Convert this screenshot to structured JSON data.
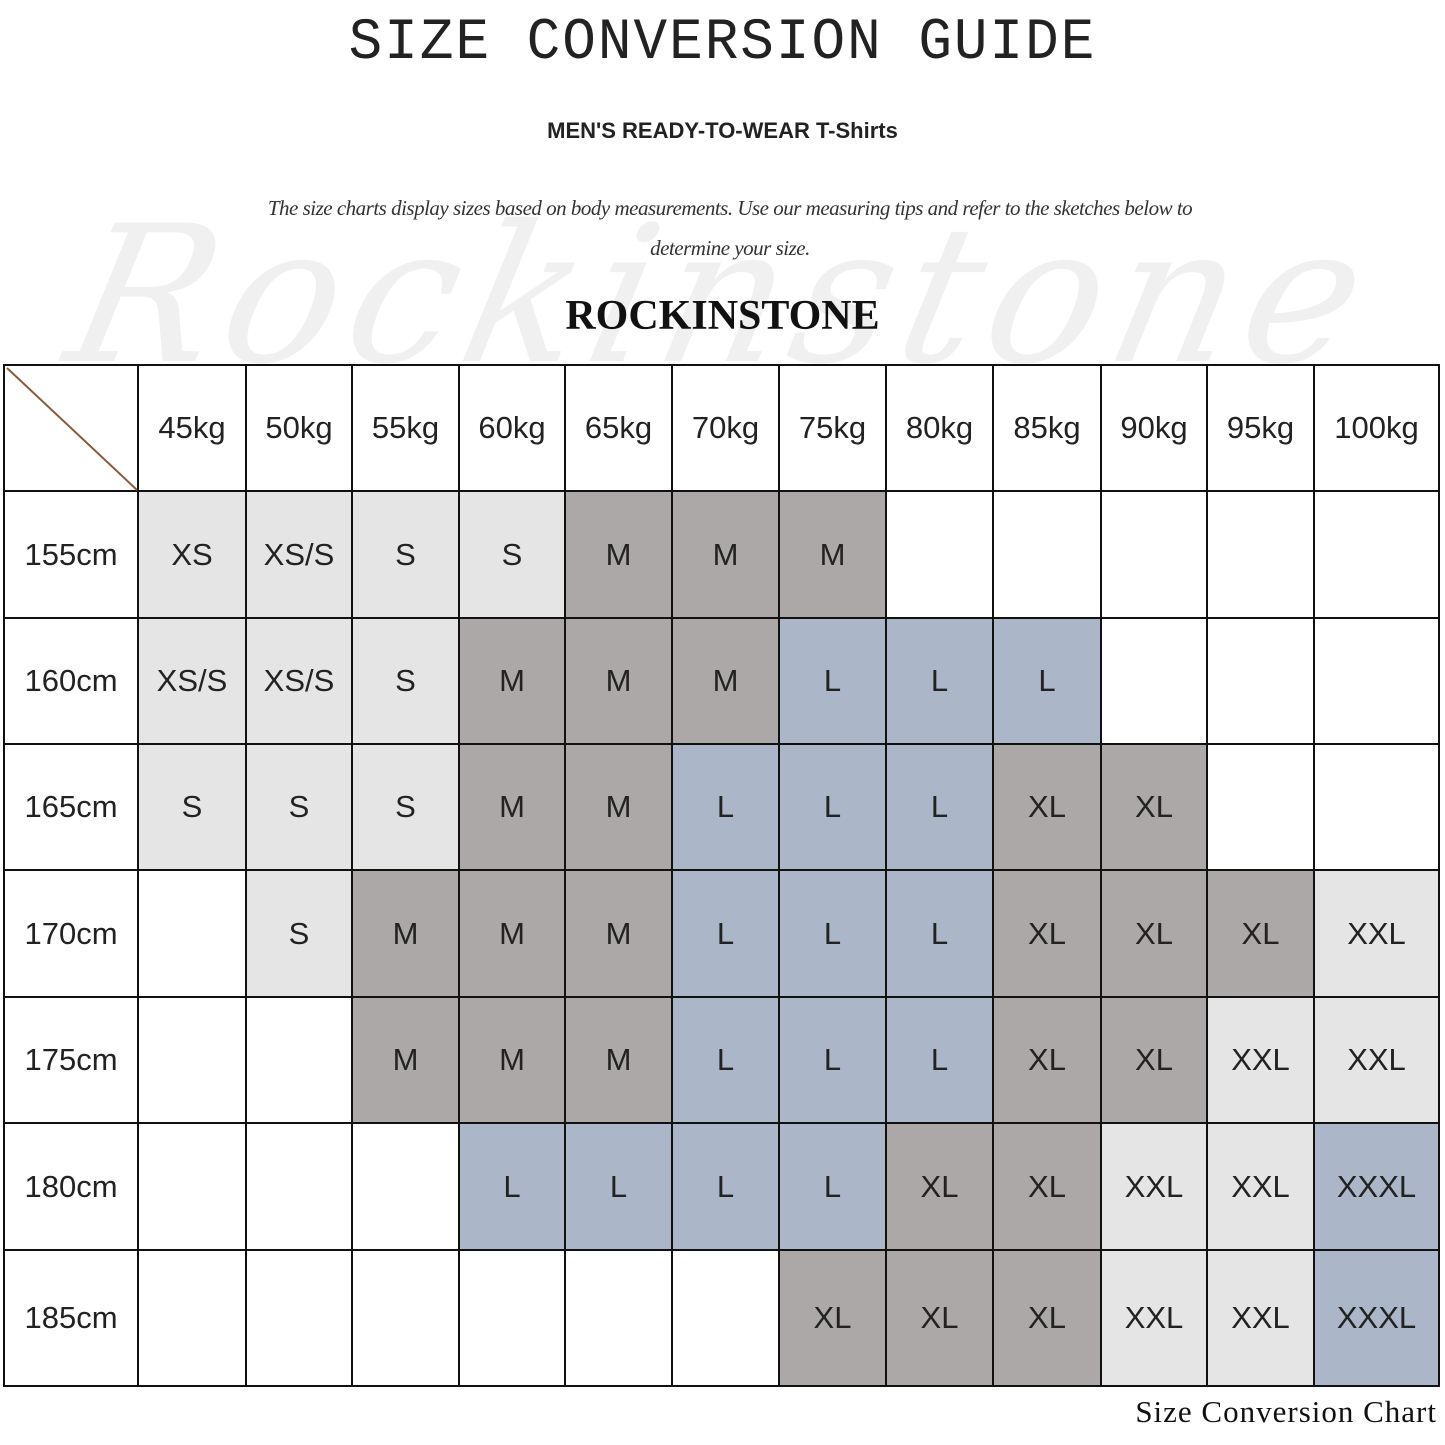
{
  "title": "SIZE CONVERSION GUIDE",
  "subtitle": "MEN'S READY-TO-WEAR T-Shirts",
  "description": "The size charts display sizes based on body measurements. Use our measuring tips and refer to the sketches below to determine your size.",
  "watermark": "Rockinstone",
  "brand": "ROCKINSTONE",
  "footer": "Size Conversion Chart",
  "colors": {
    "light": "#e5e5e5",
    "dark": "#aca8a7",
    "blue": "#abb7c9",
    "diagonal": "#8b5a3c"
  },
  "table": {
    "weights": [
      "45kg",
      "50kg",
      "55kg",
      "60kg",
      "65kg",
      "70kg",
      "75kg",
      "80kg",
      "85kg",
      "90kg",
      "95kg",
      "100kg"
    ],
    "rows": [
      {
        "height": "155cm",
        "sizes": [
          "XS",
          "XS/S",
          "S",
          "S",
          "M",
          "M",
          "M",
          "",
          "",
          "",
          "",
          ""
        ]
      },
      {
        "height": "160cm",
        "sizes": [
          "XS/S",
          "XS/S",
          "S",
          "M",
          "M",
          "M",
          "L",
          "L",
          "L",
          "",
          "",
          ""
        ]
      },
      {
        "height": "165cm",
        "sizes": [
          "S",
          "S",
          "S",
          "M",
          "M",
          "L",
          "L",
          "L",
          "XL",
          "XL",
          "",
          ""
        ]
      },
      {
        "height": "170cm",
        "sizes": [
          "",
          "S",
          "M",
          "M",
          "M",
          "L",
          "L",
          "L",
          "XL",
          "XL",
          "XL",
          "XXL"
        ]
      },
      {
        "height": "175cm",
        "sizes": [
          "",
          "",
          "M",
          "M",
          "M",
          "L",
          "L",
          "L",
          "XL",
          "XL",
          "XXL",
          "XXL"
        ]
      },
      {
        "height": "180cm",
        "sizes": [
          "",
          "",
          "",
          "L",
          "L",
          "L",
          "L",
          "XL",
          "XL",
          "XXL",
          "XXL",
          "XXXL"
        ]
      },
      {
        "height": "185cm",
        "sizes": [
          "",
          "",
          "",
          "",
          "",
          "",
          "XL",
          "XL",
          "XL",
          "XXL",
          "XXL",
          "XXXL"
        ]
      }
    ],
    "size_colors": {
      "XS": "light",
      "XS/S": "light",
      "S": "light",
      "M": "dark",
      "L": "blue",
      "XL": "dark",
      "XXL": "light",
      "XXXL": "blue"
    }
  }
}
